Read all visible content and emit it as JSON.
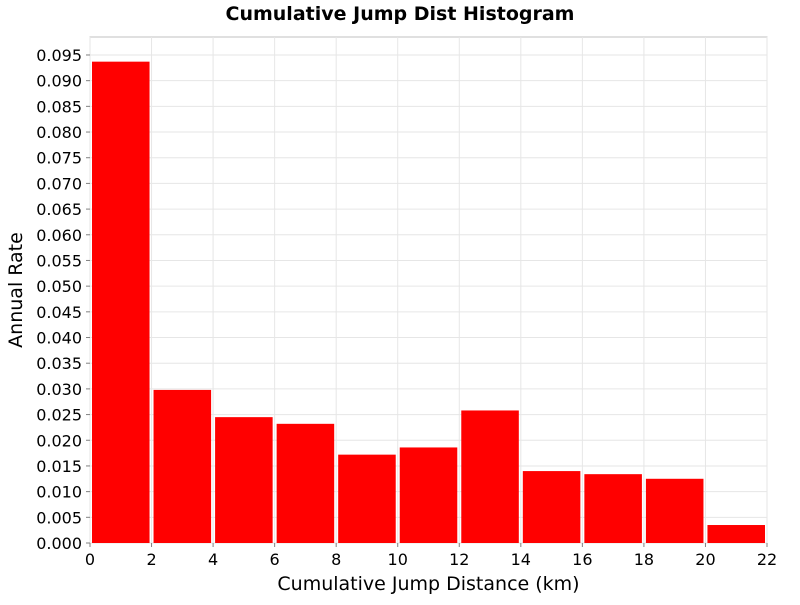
{
  "chart_data": {
    "type": "bar",
    "title": "Cumulative Jump Dist Histogram",
    "xlabel": "Cumulative Jump Distance (km)",
    "ylabel": "Annual Rate",
    "xlim": [
      0,
      22
    ],
    "ylim": [
      0,
      0.0985
    ],
    "grid": true,
    "bar_color": "#ff0000",
    "bins": [
      {
        "x0": 0,
        "x1": 2,
        "value": 0.0937
      },
      {
        "x0": 2,
        "x1": 4,
        "value": 0.0298
      },
      {
        "x0": 4,
        "x1": 6,
        "value": 0.0245
      },
      {
        "x0": 6,
        "x1": 8,
        "value": 0.0232
      },
      {
        "x0": 8,
        "x1": 10,
        "value": 0.0172
      },
      {
        "x0": 10,
        "x1": 12,
        "value": 0.0186
      },
      {
        "x0": 12,
        "x1": 14,
        "value": 0.0258
      },
      {
        "x0": 14,
        "x1": 16,
        "value": 0.014
      },
      {
        "x0": 16,
        "x1": 18,
        "value": 0.0134
      },
      {
        "x0": 18,
        "x1": 20,
        "value": 0.0125
      },
      {
        "x0": 20,
        "x1": 22,
        "value": 0.0035
      }
    ],
    "x_ticks": [
      "0",
      "2",
      "4",
      "6",
      "8",
      "10",
      "12",
      "14",
      "16",
      "18",
      "20",
      "22"
    ],
    "y_ticks": [
      "0.000",
      "0.005",
      "0.010",
      "0.015",
      "0.020",
      "0.025",
      "0.030",
      "0.035",
      "0.040",
      "0.045",
      "0.050",
      "0.055",
      "0.060",
      "0.065",
      "0.070",
      "0.075",
      "0.080",
      "0.085",
      "0.090",
      "0.095"
    ]
  }
}
